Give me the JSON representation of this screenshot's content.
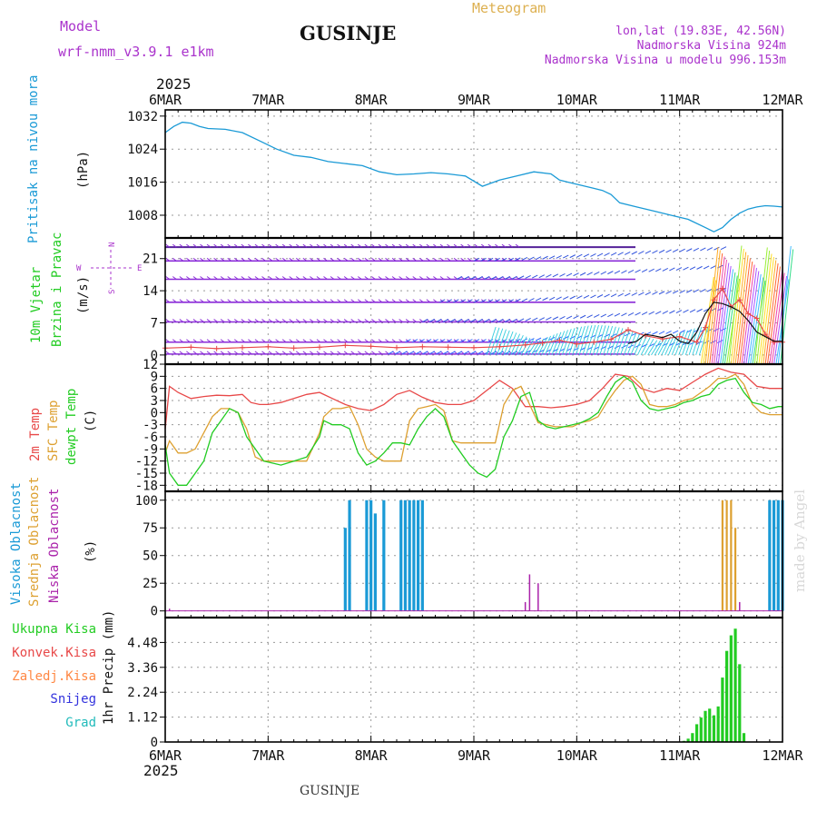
{
  "header": {
    "model_label": "Model",
    "model_name": "wrf-nmm_v3.9.1 e1km",
    "station": "GUSINJE",
    "meteogram": "Meteogram",
    "lonlat": "lon,lat (19.83E, 42.56N)",
    "altitude": "Nadmorska Visina 924m",
    "model_altitude": "Nadmorska Visina u modelu 996.153m"
  },
  "footer": {
    "station": "GUSINJE",
    "credit": "made by Angel"
  },
  "colors": {
    "pressure": "#1a9ad6",
    "temp2m": "#e84848",
    "sfc": "#dda030",
    "dewpt": "#22cc22",
    "high_cloud": "#1a9ad6",
    "mid_cloud": "#dda030",
    "low_cloud": "#aa22aa",
    "total_rain": "#22cc22",
    "magenta": "#aa33cc"
  },
  "time_axis": {
    "year": "2025",
    "labels": [
      "6MAR",
      "7MAR",
      "8MAR",
      "9MAR",
      "10MAR",
      "11MAR",
      "12MAR"
    ],
    "hours_total": 144
  },
  "chart_data": [
    {
      "type": "line",
      "panel": "pressure",
      "ylabel_lines": [
        "Pritisak na nivou mora",
        "(hPa)"
      ],
      "yticks": [
        1008,
        1016,
        1024,
        1032
      ],
      "ylim": [
        1002.5,
        1033.5
      ],
      "series": [
        {
          "x": [
            0,
            2,
            4,
            6,
            8,
            10,
            14,
            18,
            22,
            26,
            30,
            34,
            38,
            42,
            46,
            50,
            54,
            58,
            62,
            66,
            70,
            74,
            78,
            82,
            86,
            90,
            92,
            94,
            96,
            98,
            100,
            102,
            104,
            106,
            110,
            114,
            118,
            122,
            126,
            128,
            130,
            132,
            134,
            136,
            138,
            140,
            142,
            144
          ],
          "y": [
            1028,
            1029.5,
            1030.5,
            1030.3,
            1029.5,
            1029,
            1028.8,
            1028,
            1026,
            1024,
            1022.5,
            1022,
            1021,
            1020.5,
            1020,
            1018.5,
            1017.8,
            1018,
            1018.3,
            1018,
            1017.5,
            1015,
            1016.5,
            1017.5,
            1018.5,
            1018,
            1016.5,
            1016,
            1015.5,
            1015,
            1014.5,
            1014,
            1013,
            1011,
            1010,
            1009,
            1008,
            1007,
            1005,
            1004,
            1005,
            1007,
            1008.5,
            1009.5,
            1010,
            1010.3,
            1010.2,
            1010
          ]
        }
      ]
    },
    {
      "type": "line",
      "panel": "wind",
      "ylabel_lines": [
        "10m Vjetar",
        "Brzina i Pravac",
        "(m/s)"
      ],
      "compass": {
        "n": "N",
        "s": "S",
        "w": "W",
        "e": "E"
      },
      "yticks": [
        0,
        7,
        14,
        21
      ],
      "ylim": [
        -2,
        25.5
      ],
      "series": [
        {
          "name": "speed",
          "x": [
            0,
            6,
            12,
            18,
            24,
            30,
            36,
            42,
            48,
            54,
            60,
            66,
            72,
            78,
            84,
            88,
            92,
            96,
            100,
            104,
            108,
            112,
            116,
            120,
            124,
            126,
            128,
            130,
            132,
            134,
            136,
            138,
            140,
            142,
            144
          ],
          "y": [
            1.5,
            1.7,
            1.4,
            1.6,
            1.8,
            1.5,
            1.7,
            2.1,
            1.9,
            1.6,
            1.8,
            1.7,
            1.6,
            1.8,
            2.2,
            2.6,
            3.2,
            2.4,
            2.8,
            3.4,
            5.5,
            4.2,
            3.5,
            4,
            2.8,
            6,
            12,
            14.5,
            10.5,
            12,
            9,
            8,
            4.5,
            2.8,
            2.8
          ]
        },
        {
          "name": "black",
          "x": [
            108,
            110,
            112,
            114,
            116,
            118,
            120,
            122,
            124,
            126,
            128,
            130,
            132,
            134,
            136,
            138,
            140,
            142,
            144
          ],
          "y": [
            2.5,
            3,
            4.5,
            4.2,
            3.8,
            4.5,
            3,
            2.5,
            5,
            9,
            11.5,
            11.2,
            10.5,
            9.5,
            7.5,
            5,
            4,
            3,
            3
          ]
        }
      ]
    },
    {
      "type": "line",
      "panel": "temperature",
      "ylabel_lines": [
        "2m Temp",
        "SFC Temp",
        "dewpt Temp",
        "(C)"
      ],
      "yticks": [
        12,
        9,
        6,
        3,
        0,
        -3,
        -6,
        -9,
        -12,
        -15,
        -18
      ],
      "ylim": [
        -19.5,
        12
      ],
      "series": [
        {
          "name": "2m Temp",
          "x": [
            0,
            1,
            3,
            6,
            9,
            12,
            15,
            18,
            20,
            22,
            24,
            27,
            30,
            33,
            36,
            39,
            42,
            45,
            48,
            51,
            54,
            57,
            60,
            63,
            66,
            69,
            72,
            75,
            78,
            81,
            84,
            87,
            90,
            93,
            96,
            99,
            102,
            105,
            108,
            111,
            114,
            117,
            120,
            123,
            126,
            129,
            132,
            135,
            138,
            141,
            144
          ],
          "y": [
            -4,
            6.5,
            5,
            3.5,
            4,
            4.3,
            4.2,
            4.5,
            2.5,
            2,
            2,
            2.5,
            3.5,
            4.5,
            5,
            3.5,
            2,
            1,
            0.5,
            2,
            4.5,
            5.5,
            3.8,
            2.5,
            2,
            2,
            3,
            5.5,
            8,
            6,
            1.5,
            1.5,
            1.2,
            1.5,
            2,
            3,
            6,
            9.5,
            9,
            6,
            5,
            6,
            5.5,
            7.5,
            9.5,
            11,
            10,
            9.5,
            6.5,
            6,
            6
          ]
        },
        {
          "name": "SFC Temp",
          "x": [
            0,
            1,
            3,
            5,
            7,
            9,
            11,
            13,
            15,
            17,
            19,
            21,
            23,
            25,
            27,
            30,
            33,
            36,
            37,
            39,
            41,
            43,
            45,
            47,
            49,
            51,
            53,
            55,
            57,
            59,
            61,
            63,
            65,
            67,
            69,
            71,
            73,
            75,
            77,
            79,
            81,
            83,
            85,
            87,
            89,
            91,
            93,
            95,
            97,
            99,
            101,
            103,
            105,
            107,
            109,
            111,
            113,
            115,
            117,
            119,
            121,
            123,
            125,
            127,
            129,
            131,
            133,
            135,
            137,
            139,
            141,
            143,
            144
          ],
          "y": [
            -10,
            -7,
            -10,
            -10,
            -9,
            -5,
            -1,
            1,
            1,
            0,
            -4,
            -11,
            -12,
            -12,
            -12,
            -12,
            -12,
            -5,
            -1,
            1,
            1,
            1.5,
            -3,
            -9,
            -11,
            -12,
            -12,
            -12,
            -2,
            1,
            1.5,
            2,
            0.5,
            -7,
            -7.5,
            -7.5,
            -7.5,
            -7.5,
            -7.5,
            2,
            5.5,
            6.5,
            2,
            -2.5,
            -3,
            -3.5,
            -3.5,
            -3.5,
            -2.5,
            -2,
            -1,
            2.5,
            5.5,
            8,
            9,
            7,
            2,
            1.5,
            1.5,
            2,
            3,
            3.5,
            5,
            6.5,
            8.5,
            8.5,
            9.5,
            7,
            2,
            0,
            -0.5,
            -0.5,
            -0.5
          ]
        },
        {
          "name": "dewpt Temp",
          "x": [
            0,
            1,
            3,
            5,
            7,
            9,
            11,
            13,
            15,
            17,
            19,
            21,
            23,
            25,
            27,
            30,
            33,
            36,
            37,
            39,
            41,
            43,
            45,
            47,
            49,
            51,
            53,
            55,
            57,
            59,
            61,
            63,
            65,
            67,
            69,
            71,
            73,
            75,
            77,
            79,
            81,
            83,
            85,
            87,
            89,
            91,
            93,
            95,
            97,
            99,
            101,
            103,
            105,
            107,
            109,
            111,
            113,
            115,
            117,
            119,
            121,
            123,
            125,
            127,
            129,
            131,
            133,
            135,
            137,
            139,
            141,
            143,
            144
          ],
          "y": [
            -8,
            -15,
            -18,
            -18,
            -15,
            -12,
            -5,
            -2,
            1,
            0,
            -6,
            -9,
            -12,
            -12.5,
            -13,
            -12,
            -11,
            -6,
            -2,
            -3,
            -3,
            -4,
            -10,
            -13,
            -12,
            -10,
            -7.5,
            -7.5,
            -8,
            -4,
            -1,
            1,
            -1,
            -7,
            -10,
            -13,
            -15,
            -16,
            -14,
            -6,
            -2,
            4,
            5,
            -2,
            -3.5,
            -4,
            -3.5,
            -3,
            -2.5,
            -1.5,
            0,
            4,
            7.5,
            9,
            7.5,
            3,
            1,
            0.5,
            1,
            1.5,
            2.5,
            3,
            4,
            4.5,
            7,
            8,
            8.5,
            5,
            2.5,
            2,
            1,
            1.5,
            1.5
          ]
        }
      ]
    },
    {
      "type": "bar",
      "panel": "cloud",
      "ylabel_lines": [
        "Visoka Oblacnost",
        "Srednja Oblacnost",
        "Niska Oblacnost",
        "(%)"
      ],
      "yticks": [
        0,
        25,
        50,
        75,
        100
      ],
      "ylim": [
        -6,
        108
      ],
      "series": [
        {
          "name": "Visoka Oblacnost",
          "x": [
            42,
            43,
            47,
            48,
            49,
            51,
            55,
            56,
            57,
            58,
            59,
            60,
            141,
            142,
            143,
            144
          ],
          "y": [
            75,
            100,
            100,
            100,
            88,
            100,
            100,
            100,
            100,
            100,
            100,
            100,
            100,
            100,
            100,
            100
          ]
        },
        {
          "name": "Srednja Oblacnost",
          "x": [
            130,
            131,
            132,
            133
          ],
          "y": [
            100,
            100,
            100,
            75
          ]
        },
        {
          "name": "Niska Oblacnost",
          "x": [
            1,
            84,
            85,
            87,
            134
          ],
          "y": [
            2,
            8,
            33,
            25,
            8
          ]
        }
      ]
    },
    {
      "type": "bar",
      "panel": "precip",
      "ylabel_lines": [
        "1hr Precip (mm)"
      ],
      "legend": [
        "Ukupna Kisa",
        "Konvek.Kisa",
        "Zaledj.Kisa",
        "Snijeg",
        "Grad"
      ],
      "legend_colors": [
        "#22cc22",
        "#e84848",
        "#ff8844",
        "#3333dd",
        "#22bbbb"
      ],
      "yticks": [
        0,
        1.12,
        2.24,
        3.36,
        4.48
      ],
      "ylim": [
        0,
        5.6
      ],
      "series": [
        {
          "name": "Ukupna Kisa",
          "x": [
            121,
            122,
            123,
            124,
            125,
            126,
            127,
            128,
            129,
            130,
            131,
            132,
            133,
            134,
            135
          ],
          "y": [
            0.05,
            0.15,
            0.4,
            0.8,
            1.1,
            1.4,
            1.5,
            1.2,
            1.6,
            2.9,
            4.1,
            4.8,
            5.1,
            3.5,
            0.4
          ]
        }
      ]
    }
  ]
}
